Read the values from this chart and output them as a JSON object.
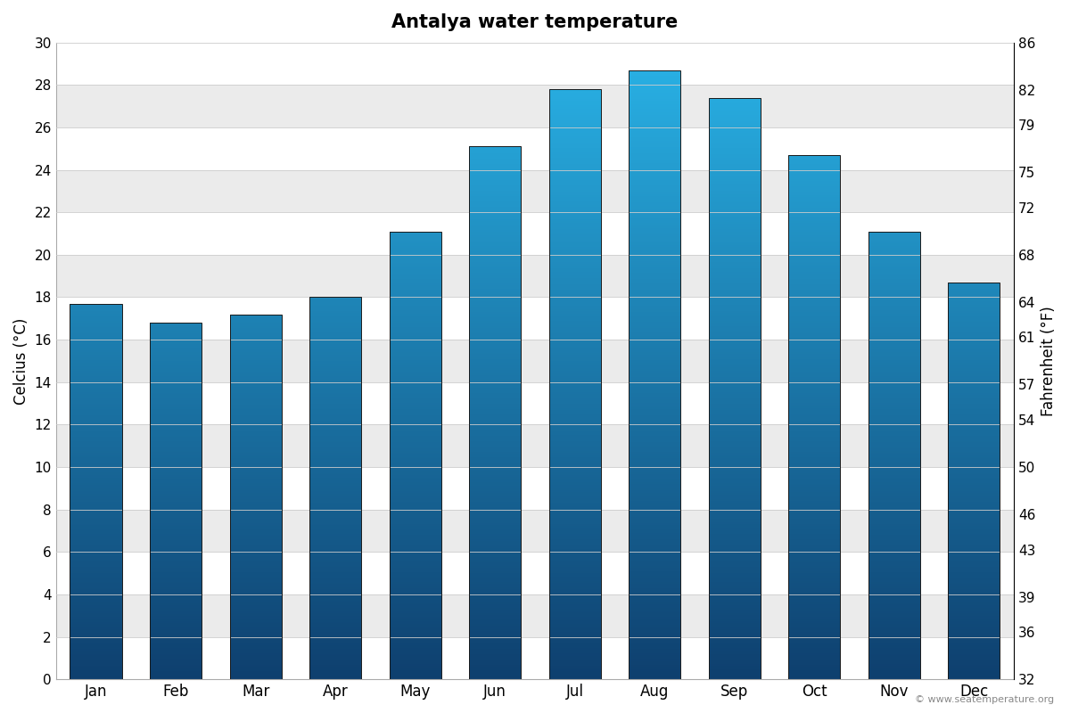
{
  "title": "Antalya water temperature",
  "months": [
    "Jan",
    "Feb",
    "Mar",
    "Apr",
    "May",
    "Jun",
    "Jul",
    "Aug",
    "Sep",
    "Oct",
    "Nov",
    "Dec"
  ],
  "celsius_values": [
    17.7,
    16.8,
    17.2,
    18.0,
    21.1,
    25.1,
    27.8,
    28.7,
    27.4,
    24.7,
    21.1,
    18.7
  ],
  "ylabel_left": "Celcius (°C)",
  "ylabel_right": "Fahrenheit (°F)",
  "ylim_celsius": [
    0,
    30
  ],
  "yticks_celsius": [
    0,
    2,
    4,
    6,
    8,
    10,
    12,
    14,
    16,
    18,
    20,
    22,
    24,
    26,
    28,
    30
  ],
  "yticks_fahrenheit": [
    32,
    36,
    39,
    43,
    46,
    50,
    54,
    57,
    61,
    64,
    68,
    72,
    75,
    79,
    82,
    86
  ],
  "color_top": "#29b4e8",
  "color_bottom": "#0e3f6e",
  "bar_edge_color": "#1a1a1a",
  "background_color": "#ffffff",
  "plot_bg_color": "#ffffff",
  "band_color": "#ebebeb",
  "copyright": "© www.seatemperature.org",
  "title_fontsize": 15,
  "bar_width": 0.65
}
